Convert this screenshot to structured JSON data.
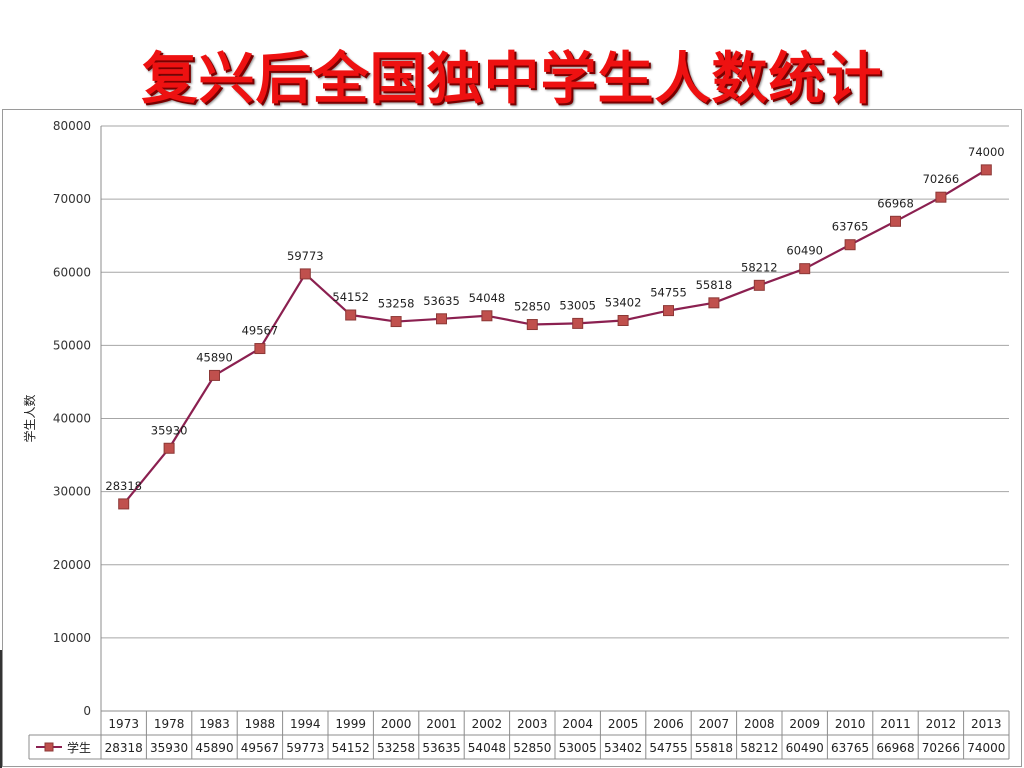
{
  "page": {
    "title": "复兴后全国独中学生人数统计"
  },
  "chart_data": {
    "type": "line",
    "title": "复兴后全国独中学生人数统计",
    "xlabel": "",
    "ylabel": "学生人数",
    "ylim": [
      0,
      80000
    ],
    "yticks": [
      0,
      10000,
      20000,
      30000,
      40000,
      50000,
      60000,
      70000,
      80000
    ],
    "grid": true,
    "legend": "data-table-left",
    "categories": [
      "1973",
      "1978",
      "1983",
      "1988",
      "1994",
      "1999",
      "2000",
      "2001",
      "2002",
      "2003",
      "2004",
      "2005",
      "2006",
      "2007",
      "2008",
      "2009",
      "2010",
      "2011",
      "2012",
      "2013"
    ],
    "series": [
      {
        "name": "学生",
        "color": "#c0504d",
        "line_color": "#8b2050",
        "marker": "square",
        "values": [
          28318,
          35930,
          45890,
          49567,
          59773,
          54152,
          53258,
          53635,
          54048,
          52850,
          53005,
          53402,
          54755,
          55818,
          58212,
          60490,
          63765,
          66968,
          70266,
          74000
        ]
      }
    ],
    "data_table": true,
    "data_labels": true
  }
}
